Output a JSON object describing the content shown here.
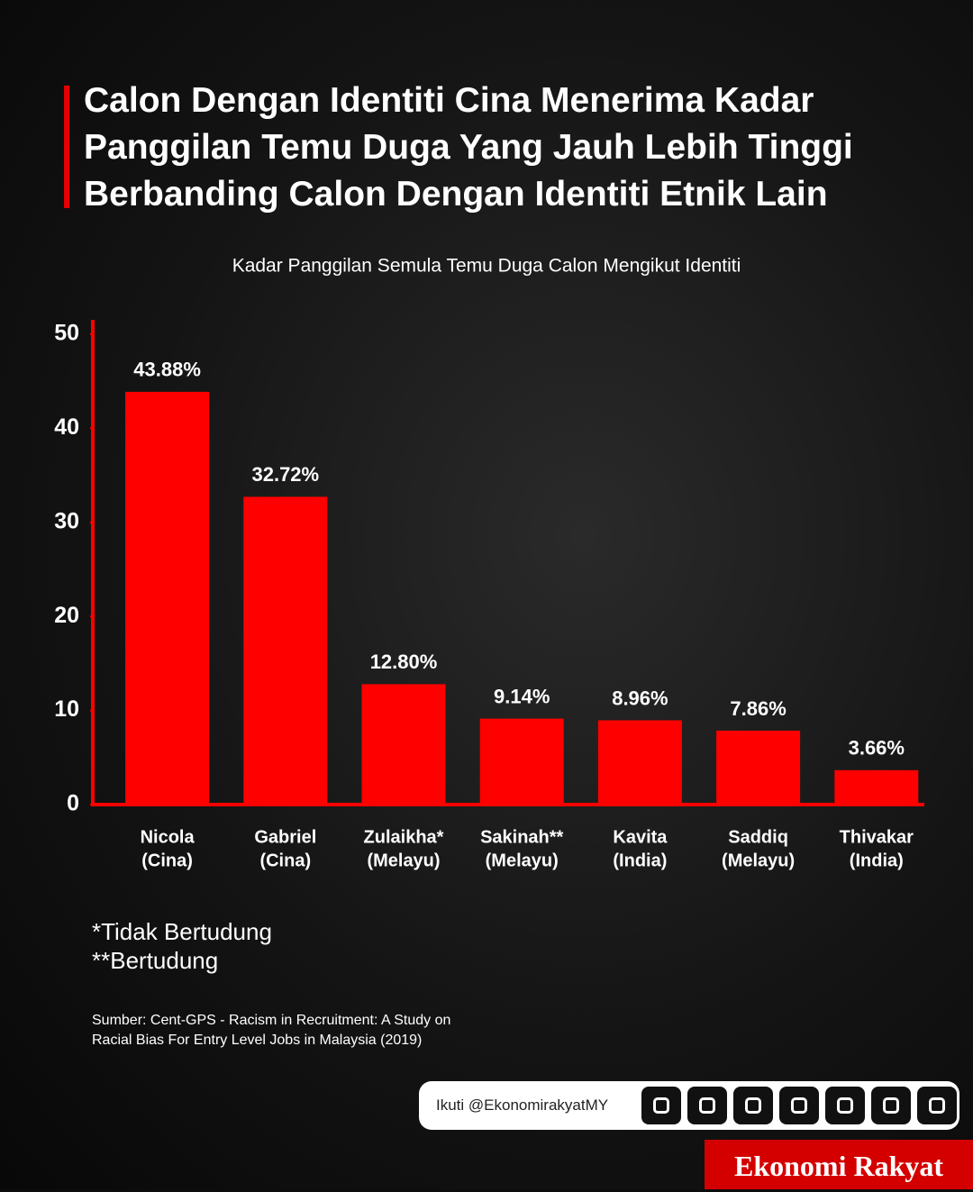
{
  "chart_data": {
    "type": "bar",
    "title": "Calon Dengan Identiti Cina Menerima Kadar Panggilan Temu Duga Yang Jauh Lebih Tinggi Berbanding Calon Dengan Identiti Etnik Lain",
    "subtitle": "Kadar Panggilan Semula Temu Duga Calon Mengikut Identiti",
    "categories": [
      [
        "Nicola",
        "(Cina)"
      ],
      [
        "Gabriel",
        "(Cina)"
      ],
      [
        "Zulaikha*",
        "(Melayu)"
      ],
      [
        "Sakinah**",
        "(Melayu)"
      ],
      [
        "Kavita",
        "(India)"
      ],
      [
        "Saddiq",
        "(Melayu)"
      ],
      [
        "Thivakar",
        "(India)"
      ]
    ],
    "values": [
      43.88,
      32.72,
      12.8,
      9.14,
      8.96,
      7.86,
      3.66
    ],
    "value_labels": [
      "43.88%",
      "32.72%",
      "12.80%",
      "9.14%",
      "8.96%",
      "7.86%",
      "3.66%"
    ],
    "color": "#ff0000",
    "ylim": [
      0,
      50
    ],
    "yticks": [
      0,
      10,
      20,
      30,
      40,
      50
    ],
    "notes": [
      "*Tidak Bertudung",
      "**Bertudung"
    ],
    "source": [
      "Sumber: Cent-GPS - Racism in Recruitment: A Study on",
      "Racial Bias For Entry Level Jobs in Malaysia (2019)"
    ],
    "follow": "Ikuti @EkonomirakyatMY",
    "brand": "Ekonomi Rakyat"
  }
}
